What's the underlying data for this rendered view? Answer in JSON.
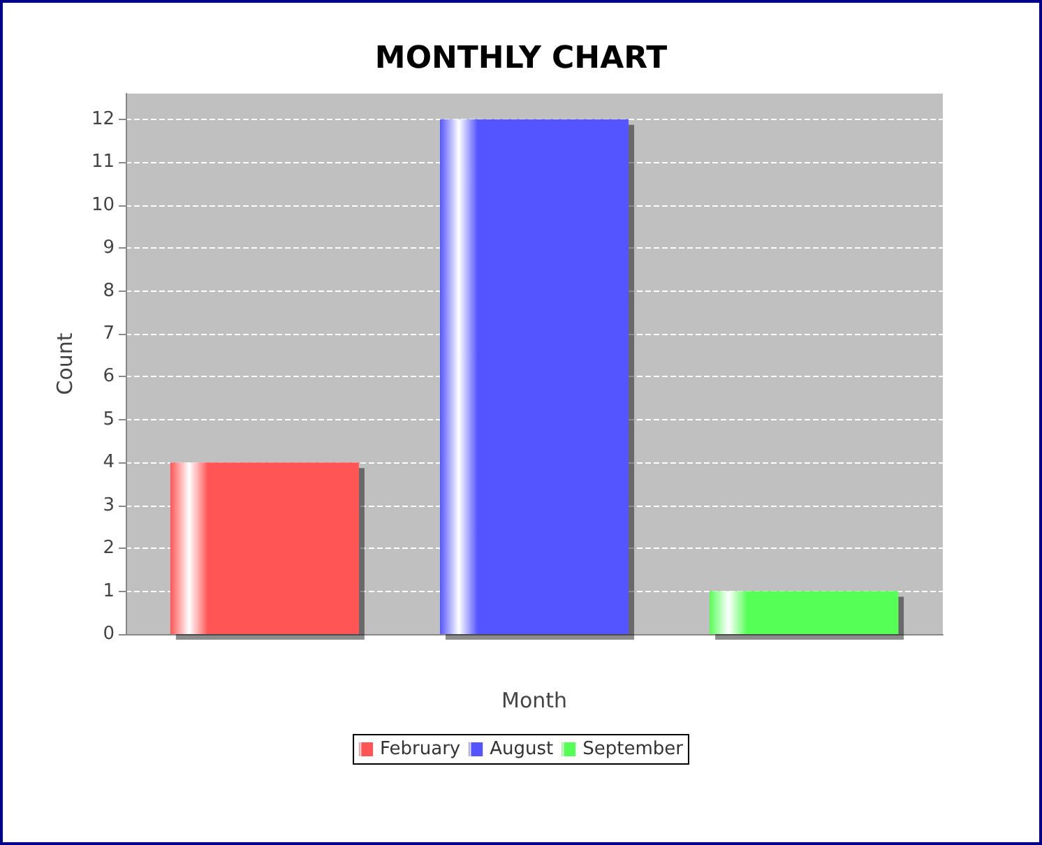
{
  "chart_data": {
    "type": "bar",
    "title": "MONTHLY CHART",
    "xlabel": "Month",
    "ylabel": "Count",
    "categories": [
      null
    ],
    "series": [
      {
        "name": "February",
        "color": "#ff5555",
        "values": [
          4
        ]
      },
      {
        "name": "August",
        "color": "#5555ff",
        "values": [
          12
        ]
      },
      {
        "name": "September",
        "color": "#55ff55",
        "values": [
          1
        ]
      }
    ],
    "ylim": [
      0,
      12.6
    ],
    "yticks": [
      0,
      1,
      2,
      3,
      4,
      5,
      6,
      7,
      8,
      9,
      10,
      11,
      12
    ],
    "grid": "y",
    "legend": "bottom"
  }
}
